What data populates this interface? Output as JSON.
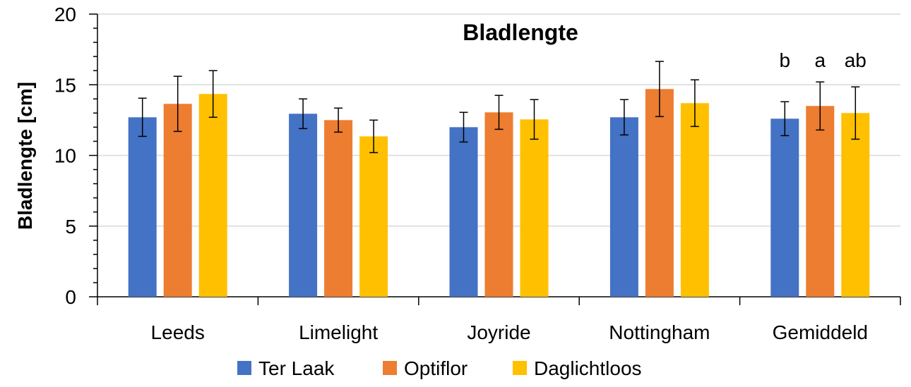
{
  "chart_data": {
    "type": "bar",
    "title": "Bladlengte",
    "xlabel": "",
    "ylabel": "Bladlengte [cm]",
    "ylim": [
      0,
      20
    ],
    "yticks": [
      0,
      5,
      10,
      15,
      20
    ],
    "grid": true,
    "legend_position": "bottom",
    "categories": [
      "Leeds",
      "Limelight",
      "Joyride",
      "Nottingham",
      "Gemiddeld"
    ],
    "series": [
      {
        "name": "Ter Laak",
        "color": "#4472C4",
        "values": [
          12.7,
          12.95,
          12.0,
          12.7,
          12.6
        ],
        "errors": [
          1.35,
          1.05,
          1.05,
          1.25,
          1.2
        ]
      },
      {
        "name": "Optiflor",
        "color": "#ED7D31",
        "values": [
          13.65,
          12.5,
          13.05,
          14.7,
          13.5
        ],
        "errors": [
          1.95,
          0.85,
          1.2,
          1.95,
          1.7
        ]
      },
      {
        "name": "Daglichtloos",
        "color": "#FFC000",
        "values": [
          14.35,
          11.35,
          12.55,
          13.7,
          13.0
        ],
        "errors": [
          1.65,
          1.15,
          1.4,
          1.65,
          1.85
        ]
      }
    ],
    "annotations": [
      {
        "category": "Gemiddeld",
        "series": "Ter Laak",
        "text": "b"
      },
      {
        "category": "Gemiddeld",
        "series": "Optiflor",
        "text": "a"
      },
      {
        "category": "Gemiddeld",
        "series": "Daglichtloos",
        "text": "ab"
      }
    ]
  }
}
